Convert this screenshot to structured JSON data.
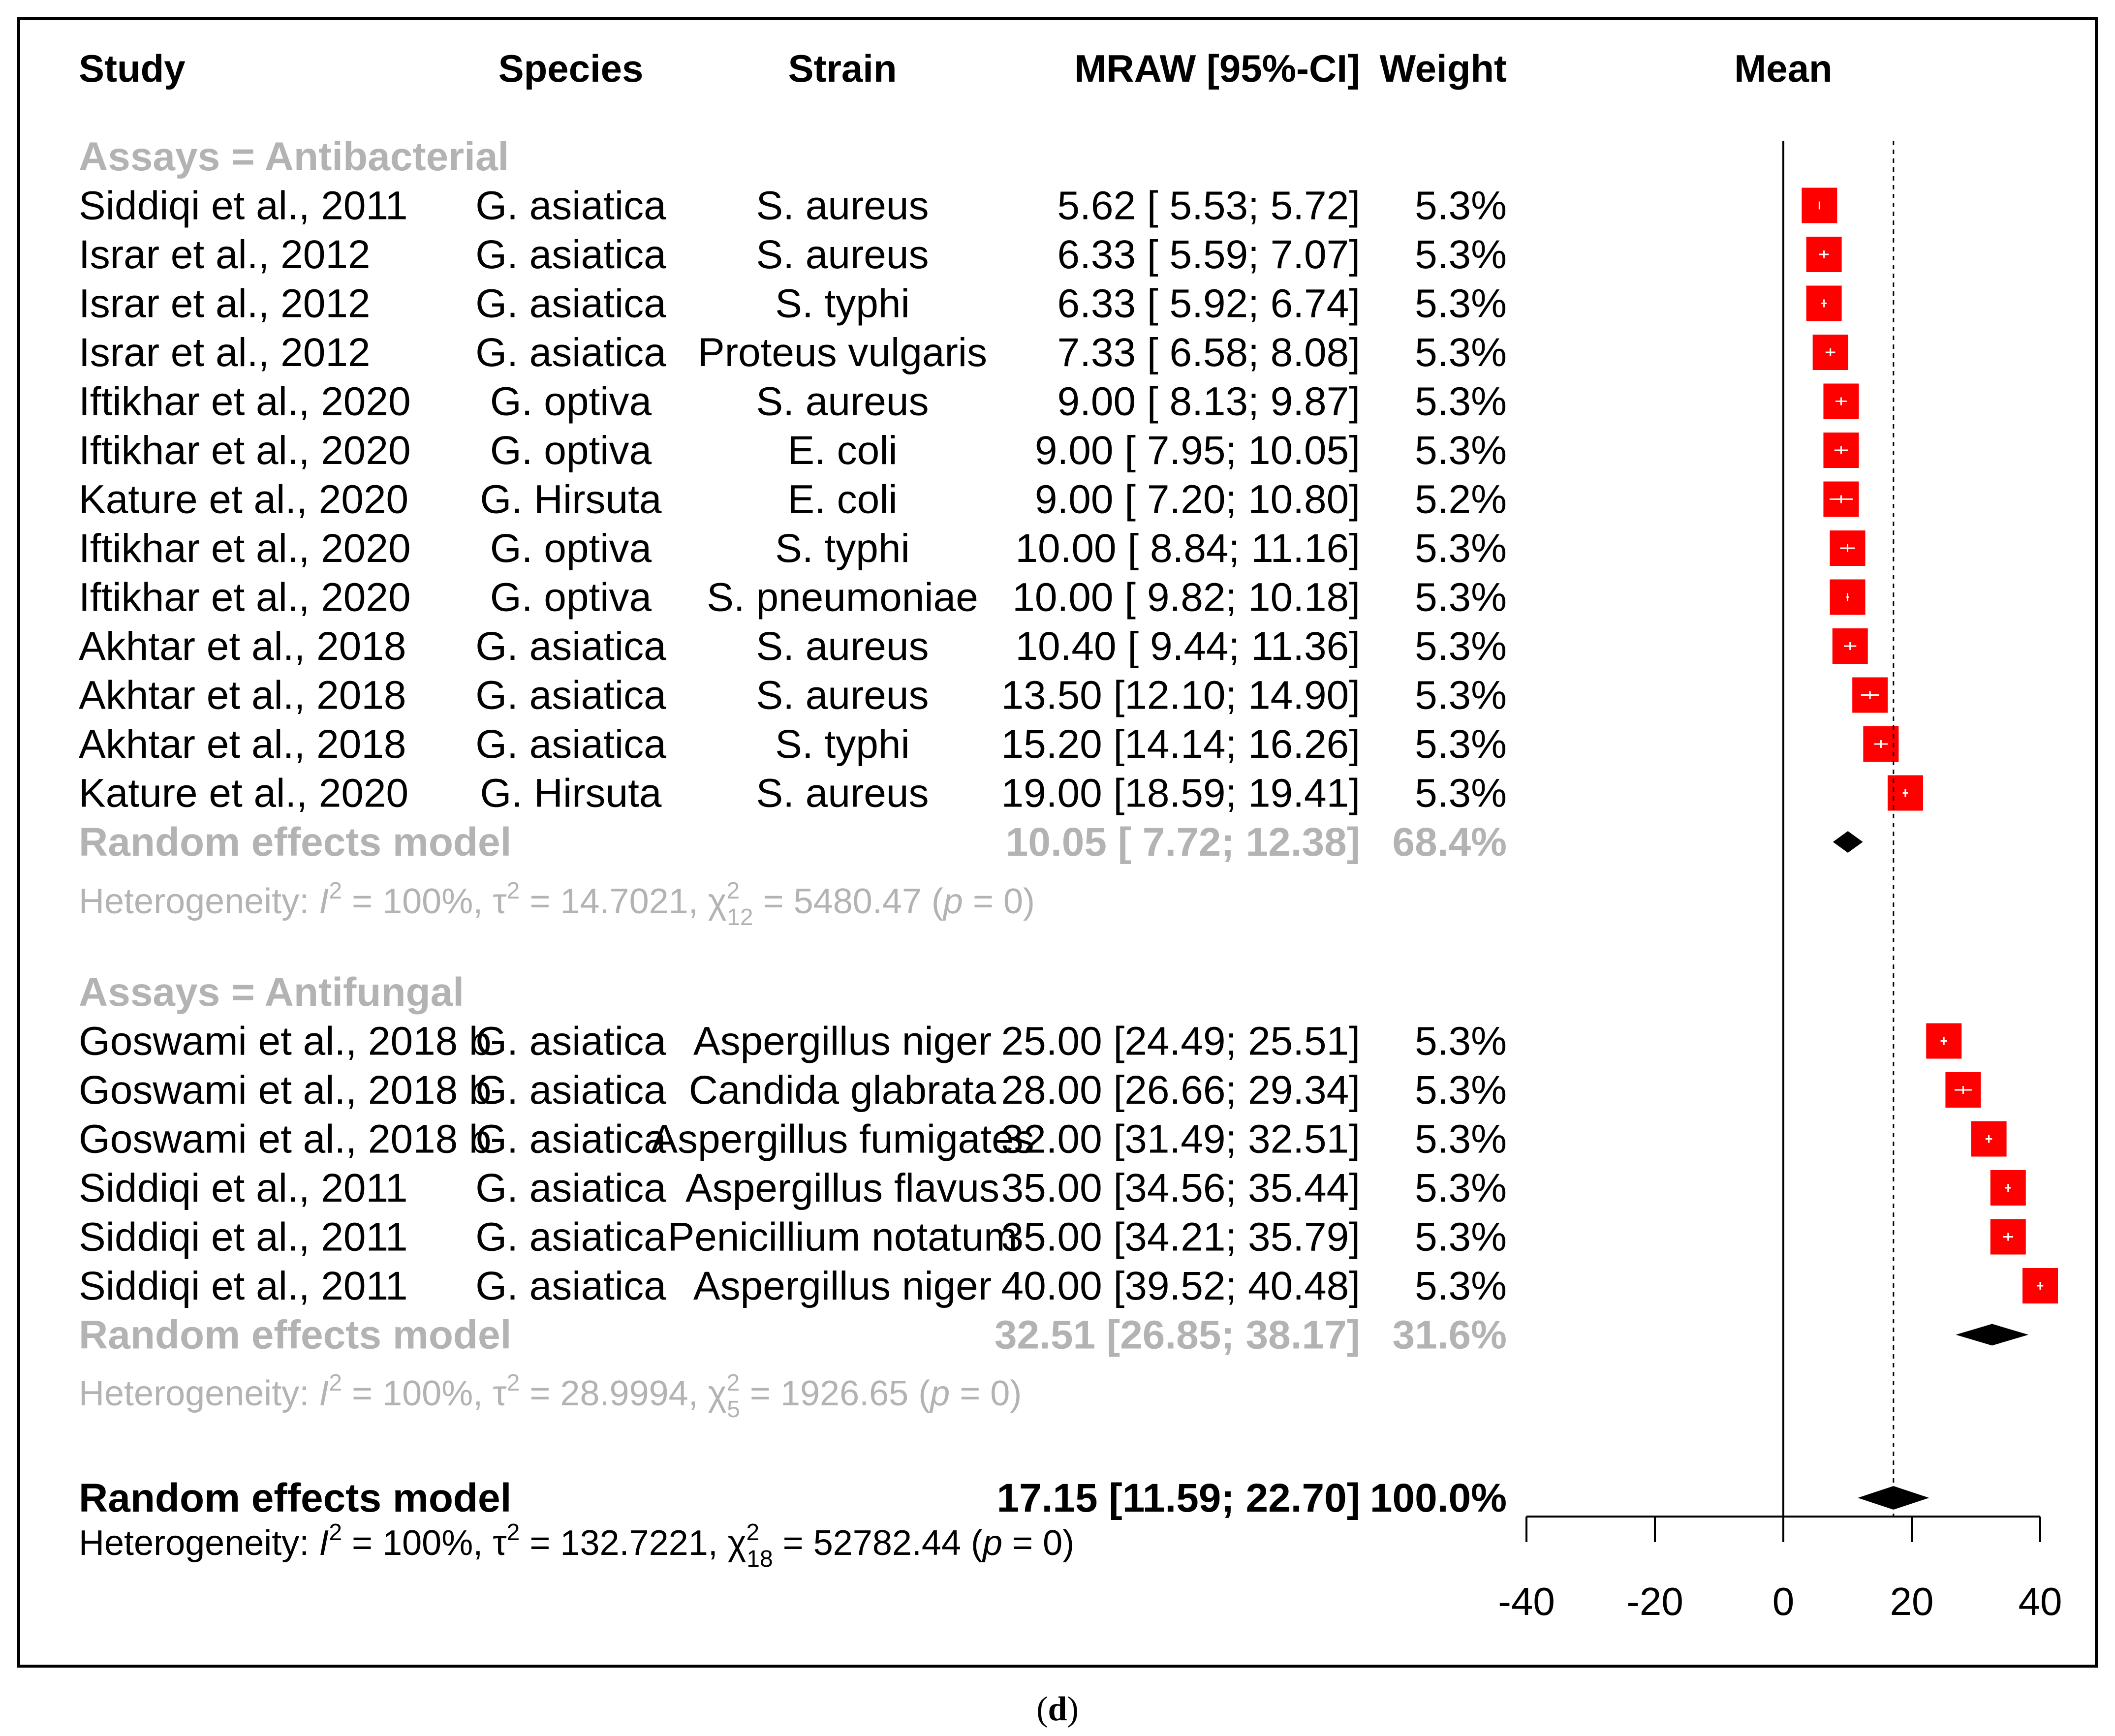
{
  "caption": {
    "open": "(",
    "letter": "d",
    "close": ")"
  },
  "chart_data": {
    "type": "forest",
    "xlim": [
      -40,
      40
    ],
    "x_ticks": [
      -40,
      -20,
      0,
      20,
      40
    ],
    "x_tick_labels": [
      "-40",
      "-20",
      "0",
      "20",
      "40"
    ],
    "null_line": 0,
    "overall_line": 17.15,
    "colors": {
      "square": "#ff0000",
      "diamond": "#000000",
      "grey_text": "#b3b3b3"
    },
    "headers": {
      "study": "Study",
      "species": "Species",
      "strain": "Strain",
      "mraw": "MRAW [95%-CI]",
      "weight": "Weight",
      "plot": "Mean"
    },
    "groups": [
      {
        "label": "Assays = Antibacterial",
        "studies": [
          {
            "study": "Siddiqi et al., 2011",
            "species": "G. asiatica",
            "strain": "S. aureus",
            "mean": 5.62,
            "lower": 5.53,
            "upper": 5.72,
            "ci_text": "5.62 [ 5.53;  5.72]",
            "weight": "5.3%"
          },
          {
            "study": "Israr et al., 2012",
            "species": "G. asiatica",
            "strain": "S. aureus",
            "mean": 6.33,
            "lower": 5.59,
            "upper": 7.07,
            "ci_text": "6.33 [ 5.59;  7.07]",
            "weight": "5.3%"
          },
          {
            "study": "Israr et al., 2012",
            "species": "G. asiatica",
            "strain": "S. typhi",
            "mean": 6.33,
            "lower": 5.92,
            "upper": 6.74,
            "ci_text": "6.33 [ 5.92;  6.74]",
            "weight": "5.3%"
          },
          {
            "study": "Israr et al., 2012",
            "species": "G. asiatica",
            "strain": "Proteus vulgaris",
            "mean": 7.33,
            "lower": 6.58,
            "upper": 8.08,
            "ci_text": "7.33 [ 6.58;  8.08]",
            "weight": "5.3%"
          },
          {
            "study": "Iftikhar et al., 2020",
            "species": "G. optiva",
            "strain": "S. aureus",
            "mean": 9.0,
            "lower": 8.13,
            "upper": 9.87,
            "ci_text": "9.00 [ 8.13;  9.87]",
            "weight": "5.3%"
          },
          {
            "study": "Iftikhar et al., 2020",
            "species": "G. optiva",
            "strain": "E. coli",
            "mean": 9.0,
            "lower": 7.95,
            "upper": 10.05,
            "ci_text": "9.00 [ 7.95; 10.05]",
            "weight": "5.3%"
          },
          {
            "study": "Kature et al., 2020",
            "species": "G. Hirsuta",
            "strain": "E. coli",
            "mean": 9.0,
            "lower": 7.2,
            "upper": 10.8,
            "ci_text": "9.00 [ 7.20; 10.80]",
            "weight": "5.2%"
          },
          {
            "study": "Iftikhar et al., 2020",
            "species": "G. optiva",
            "strain": "S. typhi",
            "mean": 10.0,
            "lower": 8.84,
            "upper": 11.16,
            "ci_text": "10.00 [ 8.84; 11.16]",
            "weight": "5.3%"
          },
          {
            "study": "Iftikhar et al., 2020",
            "species": "G. optiva",
            "strain": "S. pneumoniae",
            "mean": 10.0,
            "lower": 9.82,
            "upper": 10.18,
            "ci_text": "10.00 [ 9.82; 10.18]",
            "weight": "5.3%"
          },
          {
            "study": "Akhtar et al., 2018",
            "species": "G. asiatica",
            "strain": "S. aureus",
            "mean": 10.4,
            "lower": 9.44,
            "upper": 11.36,
            "ci_text": "10.40 [ 9.44; 11.36]",
            "weight": "5.3%"
          },
          {
            "study": "Akhtar et al., 2018",
            "species": "G. asiatica",
            "strain": "S. aureus",
            "mean": 13.5,
            "lower": 12.1,
            "upper": 14.9,
            "ci_text": "13.50 [12.10; 14.90]",
            "weight": "5.3%"
          },
          {
            "study": "Akhtar et al., 2018",
            "species": "G. asiatica",
            "strain": "S. typhi",
            "mean": 15.2,
            "lower": 14.14,
            "upper": 16.26,
            "ci_text": "15.20 [14.14; 16.26]",
            "weight": "5.3%"
          },
          {
            "study": "Kature et al., 2020",
            "species": "G. Hirsuta",
            "strain": "S. aureus",
            "mean": 19.0,
            "lower": 18.59,
            "upper": 19.41,
            "ci_text": "19.00 [18.59; 19.41]",
            "weight": "5.3%"
          }
        ],
        "model": {
          "label": "Random effects model",
          "mean": 10.05,
          "lower": 7.72,
          "upper": 12.38,
          "ci_text": "10.05 [ 7.72; 12.38]",
          "weight": "68.4%"
        },
        "heterogeneity": {
          "prefix": "Heterogeneity: ",
          "I": "I",
          "two": "2",
          "I2_rest": " = 100%, τ",
          "tau2_rest": " = 14.7021, χ",
          "df": "12",
          "chi_rest": " = 5480.47 (",
          "p": "p",
          "p_rest": " = 0)"
        }
      },
      {
        "label": "Assays = Antifungal",
        "studies": [
          {
            "study": "Goswami et al., 2018 b",
            "species": "G. asiatica",
            "strain": "Aspergillus niger",
            "mean": 25.0,
            "lower": 24.49,
            "upper": 25.51,
            "ci_text": "25.00 [24.49; 25.51]",
            "weight": "5.3%"
          },
          {
            "study": "Goswami et al., 2018 b",
            "species": "G. asiatica",
            "strain": "Candida glabrata",
            "mean": 28.0,
            "lower": 26.66,
            "upper": 29.34,
            "ci_text": "28.00 [26.66; 29.34]",
            "weight": "5.3%"
          },
          {
            "study": "Goswami et al., 2018 b",
            "species": "G. asiatica",
            "strain": "Aspergillus fumigates",
            "mean": 32.0,
            "lower": 31.49,
            "upper": 32.51,
            "ci_text": "32.00 [31.49; 32.51]",
            "weight": "5.3%"
          },
          {
            "study": "Siddiqi et al., 2011",
            "species": "G. asiatica",
            "strain": "Aspergillus flavus",
            "mean": 35.0,
            "lower": 34.56,
            "upper": 35.44,
            "ci_text": "35.00 [34.56; 35.44]",
            "weight": "5.3%"
          },
          {
            "study": "Siddiqi et al., 2011",
            "species": "G. asiatica",
            "strain": "Penicillium notatum",
            "mean": 35.0,
            "lower": 34.21,
            "upper": 35.79,
            "ci_text": "35.00 [34.21; 35.79]",
            "weight": "5.3%"
          },
          {
            "study": "Siddiqi et al., 2011",
            "species": "G. asiatica",
            "strain": "Aspergillus niger",
            "mean": 40.0,
            "lower": 39.52,
            "upper": 40.48,
            "ci_text": "40.00 [39.52; 40.48]",
            "weight": "5.3%"
          }
        ],
        "model": {
          "label": "Random effects model",
          "mean": 32.51,
          "lower": 26.85,
          "upper": 38.17,
          "ci_text": "32.51 [26.85; 38.17]",
          "weight": "31.6%"
        },
        "heterogeneity": {
          "prefix": "Heterogeneity: ",
          "I": "I",
          "two": "2",
          "I2_rest": " = 100%, τ",
          "tau2_rest": " = 28.9994, χ",
          "df": "5",
          "chi_rest": " = 1926.65 (",
          "p": "p",
          "p_rest": " = 0)"
        }
      }
    ],
    "overall": {
      "model": {
        "label": "Random effects model",
        "mean": 17.15,
        "lower": 11.59,
        "upper": 22.7,
        "ci_text": "17.15 [11.59; 22.70]",
        "weight": "100.0%"
      },
      "heterogeneity": {
        "prefix": "Heterogeneity: ",
        "I": "I",
        "two": "2",
        "I2_rest": " = 100%, τ",
        "tau2_rest": " = 132.7221, χ",
        "df": "18",
        "chi_rest": " = 52782.44 (",
        "p": "p",
        "p_rest": " = 0)"
      }
    }
  }
}
